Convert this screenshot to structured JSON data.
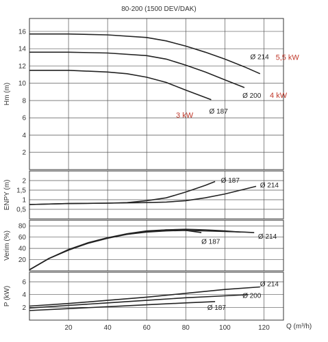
{
  "chart_data": {
    "title": "80-200 (1500 DEV/DAK)",
    "x_axis": {
      "label": "Q (m³/h)",
      "range": [
        0,
        130
      ],
      "ticks": [
        20,
        40,
        60,
        80,
        100,
        120
      ]
    },
    "panels": [
      {
        "id": "head",
        "type": "line",
        "ylabel": "Hm (m)",
        "ylim": [
          0,
          17.5
        ],
        "yticks": [
          "2",
          "4",
          "6",
          "8",
          "10",
          "12",
          "14",
          "16"
        ],
        "ytick_values": [
          2,
          4,
          6,
          8,
          10,
          12,
          14,
          16
        ],
        "series": [
          {
            "name": "Ø 214",
            "x": [
              0,
              20,
              40,
              60,
              70,
              80,
              90,
              100,
              110,
              118
            ],
            "y": [
              15.7,
              15.7,
              15.6,
              15.3,
              14.9,
              14.3,
              13.6,
              12.8,
              11.9,
              11.1
            ]
          },
          {
            "name": "Ø 200",
            "x": [
              0,
              20,
              40,
              60,
              70,
              80,
              90,
              100,
              110
            ],
            "y": [
              13.6,
              13.6,
              13.5,
              13.2,
              12.8,
              12.1,
              11.3,
              10.4,
              9.5
            ]
          },
          {
            "name": "Ø 187",
            "x": [
              0,
              20,
              40,
              50,
              60,
              70,
              80,
              93
            ],
            "y": [
              11.5,
              11.5,
              11.3,
              11.1,
              10.7,
              10.1,
              9.2,
              8.1
            ]
          }
        ],
        "curve_labels": [
          {
            "text": "Ø 214",
            "x": 113,
            "y": 12.8
          },
          {
            "text": "Ø 200",
            "x": 109,
            "y": 8.3
          },
          {
            "text": "Ø 187",
            "x": 92,
            "y": 6.5
          }
        ],
        "power_labels": [
          {
            "text": "5,5 kW",
            "x": 126,
            "y": 12.7
          },
          {
            "text": "4 kW",
            "x": 123,
            "y": 8.3
          },
          {
            "text": "3 kW",
            "x": 75,
            "y": 6.0
          }
        ]
      },
      {
        "id": "npsh",
        "type": "line",
        "ylabel": "ENPY (m)",
        "ylim": [
          0,
          2.5
        ],
        "yticks": [
          "0,5",
          "1",
          "1,5",
          "2"
        ],
        "ytick_values": [
          0.5,
          1,
          1.5,
          2
        ],
        "series": [
          {
            "name": "Ø 187",
            "x": [
              0,
              20,
              40,
              50,
              60,
              70,
              80,
              90,
              95
            ],
            "y": [
              0.75,
              0.8,
              0.82,
              0.85,
              0.95,
              1.1,
              1.4,
              1.75,
              1.95
            ]
          },
          {
            "name": "Ø 214",
            "x": [
              0,
              20,
              40,
              60,
              70,
              80,
              90,
              100,
              110,
              116
            ],
            "y": [
              0.75,
              0.8,
              0.82,
              0.85,
              0.88,
              0.95,
              1.1,
              1.3,
              1.55,
              1.7
            ]
          }
        ],
        "curve_labels": [
          {
            "text": "Ø 187",
            "x": 98,
            "y": 1.9
          },
          {
            "text": "Ø 214",
            "x": 118,
            "y": 1.65
          }
        ]
      },
      {
        "id": "efficiency",
        "type": "line",
        "ylabel": "Verim (%)",
        "ylim": [
          0,
          90
        ],
        "yticks": [
          "20",
          "40",
          "60",
          "80"
        ],
        "ytick_values": [
          20,
          40,
          60,
          80
        ],
        "series": [
          {
            "name": "Ø 214",
            "x": [
              0,
              10,
              20,
              30,
              40,
              50,
              60,
              70,
              80,
              90,
              100,
              110,
              115
            ],
            "y": [
              2,
              22,
              38,
              50,
              59,
              65,
              69,
              71,
              72,
              71,
              70,
              69,
              68
            ]
          },
          {
            "name": "Ø 200",
            "x": [
              0,
              10,
              20,
              30,
              40,
              50,
              60,
              70,
              80,
              90,
              100,
              108
            ],
            "y": [
              2,
              22,
              37,
              49,
              58,
              65,
              70,
              73,
              74,
              73,
              71,
              69
            ]
          },
          {
            "name": "Ø 187",
            "x": [
              0,
              10,
              20,
              30,
              40,
              50,
              60,
              70,
              80,
              88
            ],
            "y": [
              2,
              22,
              37,
              50,
              59,
              66,
              71,
              73,
              72,
              68
            ]
          }
        ],
        "curve_labels": [
          {
            "text": "Ø 187",
            "x": 88,
            "y": 48
          },
          {
            "text": "Ø 214",
            "x": 117,
            "y": 57
          }
        ]
      },
      {
        "id": "power",
        "type": "line",
        "ylabel": "P (kW)",
        "ylim": [
          0,
          7.5
        ],
        "yticks": [
          "2",
          "4",
          "6"
        ],
        "ytick_values": [
          2,
          4,
          6
        ],
        "series": [
          {
            "name": "Ø 214",
            "x": [
              0,
              20,
              40,
              60,
              80,
              100,
              118
            ],
            "y": [
              2.2,
              2.6,
              3.1,
              3.6,
              4.2,
              4.8,
              5.2
            ]
          },
          {
            "name": "Ø 200",
            "x": [
              0,
              20,
              40,
              60,
              80,
              100,
              112
            ],
            "y": [
              1.9,
              2.3,
              2.7,
              3.1,
              3.5,
              3.8,
              4.0
            ]
          },
          {
            "name": "Ø 187",
            "x": [
              0,
              20,
              40,
              60,
              80,
              95
            ],
            "y": [
              1.5,
              1.8,
              2.1,
              2.4,
              2.7,
              2.9
            ]
          }
        ],
        "curve_labels": [
          {
            "text": "Ø 214",
            "x": 118,
            "y": 5.3
          },
          {
            "text": "Ø 200",
            "x": 109,
            "y": 3.5
          },
          {
            "text": "Ø 187",
            "x": 91,
            "y": 1.6
          }
        ]
      }
    ]
  }
}
